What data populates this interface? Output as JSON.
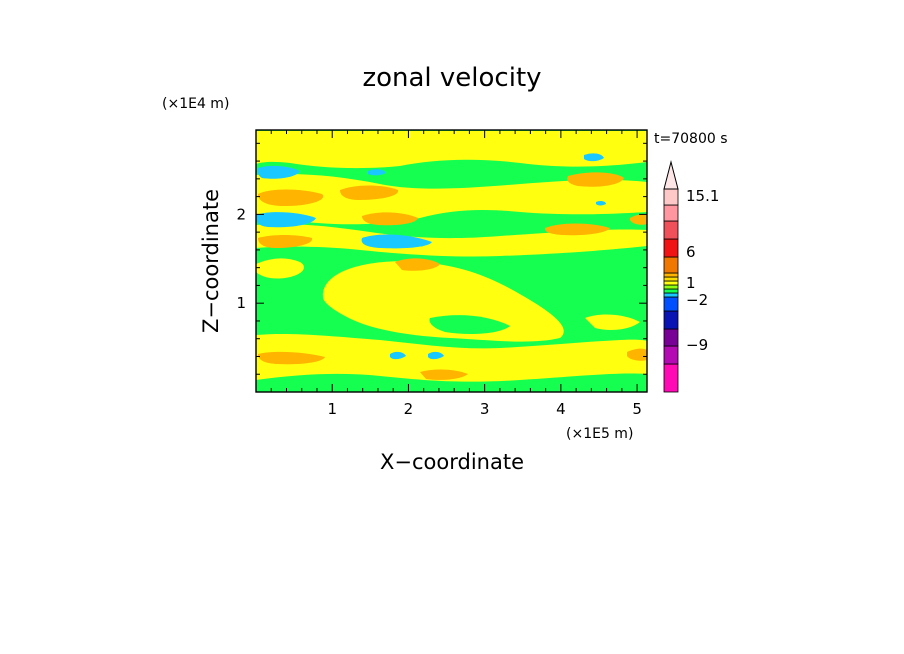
{
  "chart_data": {
    "type": "heatmap",
    "title": "zonal velocity",
    "xlabel": "X−coordinate",
    "ylabel": "Z−coordinate",
    "x_unit": "(×1E5 m)",
    "y_unit": "(×1E4 m)",
    "time_label": "t=70800 s",
    "xlim": [
      0,
      5.13
    ],
    "ylim": [
      0,
      2.95
    ],
    "x_ticks": [
      "1",
      "2",
      "3",
      "4",
      "5"
    ],
    "y_ticks": [
      "1",
      "2"
    ],
    "x_tick_values": [
      1,
      2,
      3,
      4,
      5
    ],
    "y_tick_values": [
      1,
      2
    ],
    "colorbar": {
      "labels": [
        "15.1",
        "6",
        "1",
        "−2",
        "−9"
      ],
      "label_values": [
        15.1,
        6,
        1,
        -2,
        -9
      ],
      "colors": [
        "#ff0ab4",
        "#b40ab4",
        "#780096",
        "#0a14b4",
        "#0050ff",
        "#19c8ff",
        "#14ff50",
        "#8cff0f",
        "#ffff0f",
        "#fadc00",
        "#ffb400",
        "#f07800",
        "#f01414",
        "#f0505a",
        "#ff96a0",
        "#ffc8c8"
      ],
      "extend_top": true
    },
    "levels": {
      "green": "#14ff50",
      "yellow": "#ffff0f",
      "orange": "#ffb400",
      "cyan": "#19c8ff"
    }
  }
}
